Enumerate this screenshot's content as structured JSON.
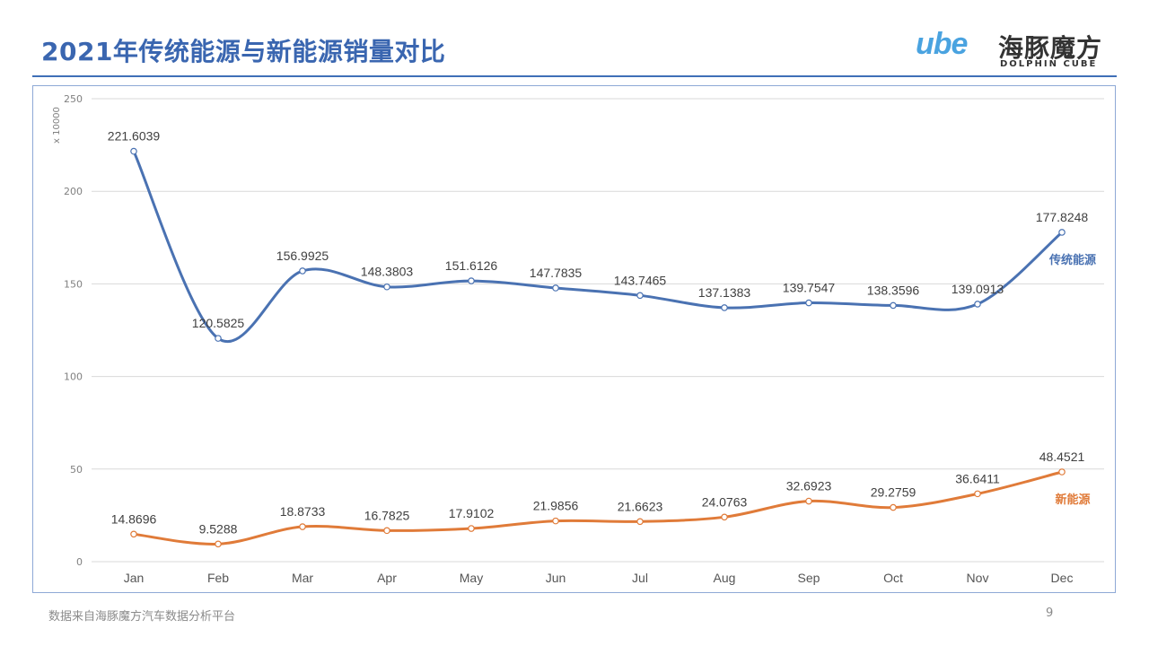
{
  "title": "2021年传统能源与新能源销量对比",
  "logo": {
    "mark": "ube",
    "name_cn": "海豚魔方",
    "name_en": "DOLPHIN CUBE"
  },
  "footer": "数据来自海豚魔方汽车数据分析平台",
  "page_number": "9",
  "colors": {
    "title": "#3a66b0",
    "traditional": "#4a72b2",
    "new_energy": "#e07b39",
    "grid": "#d9d9d9"
  },
  "chart_data": {
    "type": "line",
    "unit_label": "x 10000",
    "categories": [
      "Jan",
      "Feb",
      "Mar",
      "Apr",
      "May",
      "Jun",
      "Jul",
      "Aug",
      "Sep",
      "Oct",
      "Nov",
      "Dec"
    ],
    "ylim": [
      0,
      250
    ],
    "yticks": [
      0,
      50,
      100,
      150,
      200,
      250
    ],
    "grid": true,
    "legend": "inline-right",
    "series": [
      {
        "name": "传统能源",
        "color": "#4a72b2",
        "values": [
          221.6039,
          120.5825,
          156.9925,
          148.3803,
          151.6126,
          147.7835,
          143.7465,
          137.1383,
          139.7547,
          138.3596,
          139.0913,
          177.8248
        ],
        "labels": [
          "221.6039",
          "120.5825",
          "156.9925",
          "148.3803",
          "151.6126",
          "147.7835",
          "143.7465",
          "137.1383",
          "139.7547",
          "138.3596",
          "139.0913",
          "177.8248"
        ]
      },
      {
        "name": "新能源",
        "color": "#e07b39",
        "values": [
          14.8696,
          9.5288,
          18.8733,
          16.7825,
          17.9102,
          21.9856,
          21.6623,
          24.0763,
          32.6923,
          29.2759,
          36.6411,
          48.4521
        ],
        "labels": [
          "14.8696",
          "9.5288",
          "18.8733",
          "16.7825",
          "17.9102",
          "21.9856",
          "21.6623",
          "24.0763",
          "32.6923",
          "29.2759",
          "36.6411",
          "48.4521"
        ]
      }
    ]
  }
}
